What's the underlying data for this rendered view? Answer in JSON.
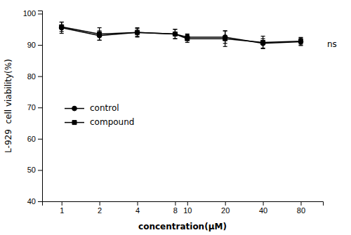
{
  "chart_data": {
    "type": "line",
    "xlabel": "concentration(μM)",
    "ylabel": "L-929  cell viability(%)",
    "annotation": "ns",
    "log": "x",
    "grid": false,
    "legend": "left",
    "x": [
      1,
      2,
      4,
      8,
      10,
      20,
      40,
      80
    ],
    "xlim": [
      0.7,
      120
    ],
    "xticks": [
      1,
      2,
      4,
      8,
      10,
      20,
      40,
      80
    ],
    "ylim": [
      40,
      101
    ],
    "yticks": [
      40,
      50,
      60,
      70,
      80,
      90,
      100
    ],
    "series": [
      {
        "name": "control",
        "color": "#000000",
        "marker": "circle",
        "line_style": "solid",
        "values": [
          95.5,
          93.0,
          94.0,
          93.5,
          92.5,
          92.5,
          90.5,
          91.0
        ],
        "errors": [
          1.8,
          1.5,
          1.2,
          1.5,
          1.0,
          2.0,
          1.5,
          1.2
        ]
      },
      {
        "name": "compound",
        "color": "#000000",
        "marker": "square",
        "line_style": "solid",
        "values": [
          95.8,
          93.5,
          94.0,
          93.5,
          92.0,
          92.0,
          90.8,
          91.2
        ],
        "errors": [
          1.5,
          2.0,
          1.5,
          1.5,
          1.2,
          2.5,
          2.0,
          1.2
        ]
      }
    ]
  }
}
